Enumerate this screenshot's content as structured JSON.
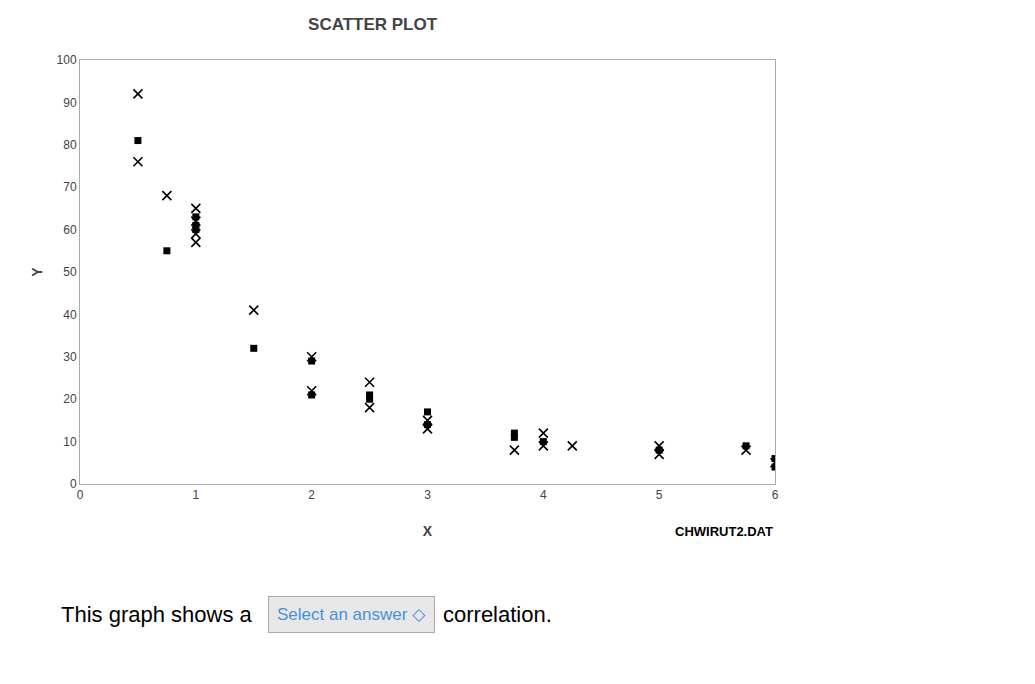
{
  "chart_data": {
    "type": "scatter",
    "title": "SCATTER PLOT",
    "x_label": "X",
    "y_label": "Y",
    "xlim": [
      0,
      6
    ],
    "ylim": [
      0,
      100
    ],
    "xticks": [
      0,
      1,
      2,
      3,
      4,
      5,
      6
    ],
    "yticks": [
      0,
      10,
      20,
      30,
      40,
      50,
      60,
      70,
      80,
      90,
      100
    ],
    "grid": false,
    "series": [
      {
        "marker": "x",
        "color": "#000000",
        "x": [
          0.5,
          0.5,
          0.75,
          1.0,
          1.0,
          1.0,
          1.0,
          1.5,
          2.0,
          2.0,
          2.5,
          2.5,
          3.0,
          3.0,
          3.75,
          4.0,
          4.0,
          4.25,
          5.0,
          5.0,
          5.75,
          6.0
        ],
        "values": [
          92,
          76,
          68,
          65,
          62,
          59,
          57,
          41,
          30,
          22,
          24,
          18,
          15,
          13,
          8,
          12,
          9,
          9,
          9,
          7,
          8,
          5
        ]
      },
      {
        "marker": "square",
        "color": "#000000",
        "x": [
          0.5,
          0.75,
          1.0,
          1.0,
          1.0,
          1.5,
          2.0,
          2.0,
          2.5,
          2.5,
          3.0,
          3.0,
          3.75,
          3.75,
          4.0,
          5.0,
          5.75,
          6.0,
          6.0
        ],
        "values": [
          81,
          55,
          63,
          61,
          60,
          32,
          29,
          21,
          21,
          20,
          17,
          14,
          12,
          11,
          10,
          8,
          9,
          6,
          4
        ]
      }
    ],
    "annotations": [
      "CHWIRUT2.DAT",
      "This graph shows a",
      "Select an answer ◇",
      "correlation."
    ]
  }
}
